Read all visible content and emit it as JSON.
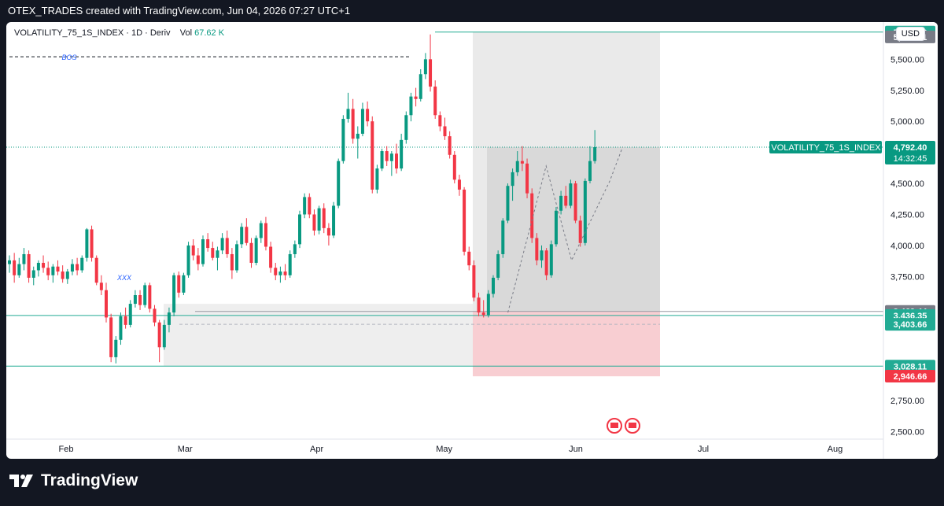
{
  "header": {
    "text": "OTEX_TRADES created with TradingView.com, Jun 04, 2026 07:27 UTC+1"
  },
  "chart_header": {
    "symbol": "VOLATILITY_75_1S_INDEX",
    "interval": "1D",
    "broker": "Deriv",
    "vol_label": "Vol",
    "vol_value": "67.62 K"
  },
  "currency": "USD",
  "branding": {
    "name": "TradingView"
  },
  "colors": {
    "up": "#089981",
    "down": "#f23645",
    "level": "#22ab94",
    "grey_box": "#787b86",
    "stop_box": "#f7525f",
    "bos": "#2962ff"
  },
  "chart_data": {
    "type": "candlestick",
    "ylim": [
      2440,
      5800
    ],
    "y_ticks": [
      2500,
      2750,
      3000,
      3250,
      3500,
      3750,
      4000,
      4250,
      4500,
      4750,
      5000,
      5250,
      5500
    ],
    "y_tick_labels": [
      "2,500.00",
      "2,750.00",
      "",
      "",
      "",
      "3,750.00",
      "4,000.00",
      "4,250.00",
      "4,500.00",
      "",
      "5,000.00",
      "5,250.00",
      "5,500.00"
    ],
    "x_labels": [
      {
        "label": "Feb",
        "day": 0
      },
      {
        "label": "Mar",
        "day": 28
      },
      {
        "label": "Apr",
        "day": 59
      },
      {
        "label": "May",
        "day": 89
      },
      {
        "label": "Jun",
        "day": 120
      },
      {
        "label": "Jul",
        "day": 150
      },
      {
        "label": "Aug",
        "day": 181
      }
    ],
    "price_labels": [
      {
        "value": "5,719.06",
        "price": 5719,
        "color": "#22ab94"
      },
      {
        "value": "5,714.01",
        "price": 5680,
        "color": "#787b86"
      },
      {
        "value": "3,469.44",
        "price": 3469,
        "color": "#787b86"
      },
      {
        "value": "3,436.35",
        "price": 3436,
        "color": "#22ab94"
      },
      {
        "value": "3,403.66",
        "price": 3365,
        "color": "#22ab94"
      },
      {
        "value": "3,028.11",
        "price": 3028,
        "color": "#22ab94"
      },
      {
        "value": "2,946.66",
        "price": 2947,
        "color": "#f23645"
      }
    ],
    "last_price": {
      "name": "VOLATILITY_75_1S_INDEX",
      "value": "4,792.40",
      "price": 4792,
      "countdown": "14:32:45"
    },
    "annotations": {
      "bos": "BOS",
      "xxx": "XXX"
    },
    "candles": [
      {
        "o": 3850,
        "h": 3920,
        "l": 3780,
        "c": 3880
      },
      {
        "o": 3880,
        "h": 3940,
        "l": 3700,
        "c": 3760
      },
      {
        "o": 3760,
        "h": 3900,
        "l": 3740,
        "c": 3850
      },
      {
        "o": 3850,
        "h": 3980,
        "l": 3800,
        "c": 3930
      },
      {
        "o": 3930,
        "h": 3960,
        "l": 3700,
        "c": 3740
      },
      {
        "o": 3740,
        "h": 3830,
        "l": 3680,
        "c": 3800
      },
      {
        "o": 3800,
        "h": 3880,
        "l": 3750,
        "c": 3860
      },
      {
        "o": 3860,
        "h": 3920,
        "l": 3780,
        "c": 3820
      },
      {
        "o": 3820,
        "h": 3870,
        "l": 3720,
        "c": 3760
      },
      {
        "o": 3760,
        "h": 3850,
        "l": 3700,
        "c": 3830
      },
      {
        "o": 3830,
        "h": 3880,
        "l": 3760,
        "c": 3790
      },
      {
        "o": 3790,
        "h": 3840,
        "l": 3700,
        "c": 3730
      },
      {
        "o": 3730,
        "h": 3810,
        "l": 3690,
        "c": 3790
      },
      {
        "o": 3790,
        "h": 3890,
        "l": 3760,
        "c": 3850
      },
      {
        "o": 3850,
        "h": 3900,
        "l": 3760,
        "c": 3800
      },
      {
        "o": 3800,
        "h": 3920,
        "l": 3780,
        "c": 3900
      },
      {
        "o": 3900,
        "h": 4140,
        "l": 3870,
        "c": 4130
      },
      {
        "o": 4130,
        "h": 4160,
        "l": 3870,
        "c": 3900
      },
      {
        "o": 3900,
        "h": 3920,
        "l": 3680,
        "c": 3700
      },
      {
        "o": 3700,
        "h": 3760,
        "l": 3600,
        "c": 3640
      },
      {
        "o": 3640,
        "h": 3700,
        "l": 3380,
        "c": 3420
      },
      {
        "o": 3420,
        "h": 3450,
        "l": 3060,
        "c": 3100
      },
      {
        "o": 3100,
        "h": 3270,
        "l": 3050,
        "c": 3240
      },
      {
        "o": 3240,
        "h": 3460,
        "l": 3200,
        "c": 3430
      },
      {
        "o": 3430,
        "h": 3500,
        "l": 3330,
        "c": 3360
      },
      {
        "o": 3360,
        "h": 3560,
        "l": 3340,
        "c": 3530
      },
      {
        "o": 3530,
        "h": 3640,
        "l": 3500,
        "c": 3600
      },
      {
        "o": 3600,
        "h": 3640,
        "l": 3480,
        "c": 3520
      },
      {
        "o": 3520,
        "h": 3700,
        "l": 3500,
        "c": 3680
      },
      {
        "o": 3680,
        "h": 3700,
        "l": 3460,
        "c": 3490
      },
      {
        "o": 3490,
        "h": 3520,
        "l": 3350,
        "c": 3380
      },
      {
        "o": 3380,
        "h": 3400,
        "l": 3060,
        "c": 3180
      },
      {
        "o": 3180,
        "h": 3400,
        "l": 3160,
        "c": 3360
      },
      {
        "o": 3360,
        "h": 3500,
        "l": 3300,
        "c": 3460
      },
      {
        "o": 3460,
        "h": 3780,
        "l": 3430,
        "c": 3760
      },
      {
        "o": 3760,
        "h": 3790,
        "l": 3580,
        "c": 3620
      },
      {
        "o": 3620,
        "h": 3780,
        "l": 3600,
        "c": 3760
      },
      {
        "o": 3760,
        "h": 4030,
        "l": 3740,
        "c": 4000
      },
      {
        "o": 4000,
        "h": 4050,
        "l": 3880,
        "c": 3920
      },
      {
        "o": 3920,
        "h": 3980,
        "l": 3800,
        "c": 3850
      },
      {
        "o": 3850,
        "h": 4080,
        "l": 3830,
        "c": 4050
      },
      {
        "o": 4050,
        "h": 4100,
        "l": 3950,
        "c": 3980
      },
      {
        "o": 3980,
        "h": 4030,
        "l": 3880,
        "c": 3900
      },
      {
        "o": 3900,
        "h": 3990,
        "l": 3800,
        "c": 3960
      },
      {
        "o": 3960,
        "h": 4100,
        "l": 3930,
        "c": 4060
      },
      {
        "o": 4060,
        "h": 4120,
        "l": 3900,
        "c": 3930
      },
      {
        "o": 3930,
        "h": 3980,
        "l": 3730,
        "c": 3800
      },
      {
        "o": 3800,
        "h": 4040,
        "l": 3780,
        "c": 4010
      },
      {
        "o": 4010,
        "h": 4180,
        "l": 3980,
        "c": 4150
      },
      {
        "o": 4150,
        "h": 4220,
        "l": 4000,
        "c": 4020
      },
      {
        "o": 4020,
        "h": 4060,
        "l": 3820,
        "c": 3860
      },
      {
        "o": 3860,
        "h": 4080,
        "l": 3840,
        "c": 4060
      },
      {
        "o": 4060,
        "h": 4200,
        "l": 4020,
        "c": 4180
      },
      {
        "o": 4180,
        "h": 4230,
        "l": 3960,
        "c": 3990
      },
      {
        "o": 3990,
        "h": 4030,
        "l": 3780,
        "c": 3820
      },
      {
        "o": 3820,
        "h": 3860,
        "l": 3720,
        "c": 3760
      },
      {
        "o": 3760,
        "h": 3830,
        "l": 3700,
        "c": 3790
      },
      {
        "o": 3790,
        "h": 3850,
        "l": 3720,
        "c": 3760
      },
      {
        "o": 3760,
        "h": 3960,
        "l": 3740,
        "c": 3930
      },
      {
        "o": 3930,
        "h": 4040,
        "l": 3900,
        "c": 4010
      },
      {
        "o": 4010,
        "h": 4280,
        "l": 3980,
        "c": 4250
      },
      {
        "o": 4250,
        "h": 4420,
        "l": 4220,
        "c": 4390
      },
      {
        "o": 4390,
        "h": 4420,
        "l": 4220,
        "c": 4250
      },
      {
        "o": 4250,
        "h": 4290,
        "l": 4080,
        "c": 4120
      },
      {
        "o": 4120,
        "h": 4320,
        "l": 4090,
        "c": 4300
      },
      {
        "o": 4300,
        "h": 4340,
        "l": 4100,
        "c": 4140
      },
      {
        "o": 4140,
        "h": 4180,
        "l": 4000,
        "c": 4080
      },
      {
        "o": 4080,
        "h": 4350,
        "l": 4060,
        "c": 4320
      },
      {
        "o": 4320,
        "h": 4700,
        "l": 4300,
        "c": 4680
      },
      {
        "o": 4680,
        "h": 5050,
        "l": 4660,
        "c": 5020
      },
      {
        "o": 5020,
        "h": 5230,
        "l": 4990,
        "c": 5100
      },
      {
        "o": 5100,
        "h": 5180,
        "l": 4820,
        "c": 4860
      },
      {
        "o": 4860,
        "h": 4960,
        "l": 4700,
        "c": 4900
      },
      {
        "o": 4900,
        "h": 5150,
        "l": 4880,
        "c": 5100
      },
      {
        "o": 5100,
        "h": 5160,
        "l": 4960,
        "c": 5000
      },
      {
        "o": 5000,
        "h": 5040,
        "l": 4420,
        "c": 4450
      },
      {
        "o": 4450,
        "h": 4650,
        "l": 4420,
        "c": 4620
      },
      {
        "o": 4620,
        "h": 4780,
        "l": 4600,
        "c": 4760
      },
      {
        "o": 4760,
        "h": 4800,
        "l": 4640,
        "c": 4680
      },
      {
        "o": 4680,
        "h": 4760,
        "l": 4560,
        "c": 4740
      },
      {
        "o": 4740,
        "h": 4820,
        "l": 4580,
        "c": 4620
      },
      {
        "o": 4620,
        "h": 4900,
        "l": 4600,
        "c": 4850
      },
      {
        "o": 4850,
        "h": 5080,
        "l": 4820,
        "c": 5050
      },
      {
        "o": 5050,
        "h": 5230,
        "l": 5000,
        "c": 5200
      },
      {
        "o": 5200,
        "h": 5270,
        "l": 5120,
        "c": 5180
      },
      {
        "o": 5180,
        "h": 5420,
        "l": 5160,
        "c": 5380
      },
      {
        "o": 5380,
        "h": 5550,
        "l": 5340,
        "c": 5500
      },
      {
        "o": 5500,
        "h": 5700,
        "l": 5240,
        "c": 5280
      },
      {
        "o": 5280,
        "h": 5330,
        "l": 5020,
        "c": 5050
      },
      {
        "o": 5050,
        "h": 5080,
        "l": 4920,
        "c": 4960
      },
      {
        "o": 4960,
        "h": 5030,
        "l": 4850,
        "c": 4880
      },
      {
        "o": 4880,
        "h": 4920,
        "l": 4700,
        "c": 4730
      },
      {
        "o": 4730,
        "h": 4760,
        "l": 4500,
        "c": 4530
      },
      {
        "o": 4530,
        "h": 4570,
        "l": 4400,
        "c": 4450
      },
      {
        "o": 4450,
        "h": 4470,
        "l": 3920,
        "c": 3950
      },
      {
        "o": 3950,
        "h": 3990,
        "l": 3800,
        "c": 3840
      },
      {
        "o": 3840,
        "h": 3880,
        "l": 3550,
        "c": 3580
      },
      {
        "o": 3580,
        "h": 3620,
        "l": 3430,
        "c": 3460
      },
      {
        "o": 3460,
        "h": 3560,
        "l": 3420,
        "c": 3440
      },
      {
        "o": 3440,
        "h": 3640,
        "l": 3420,
        "c": 3610
      },
      {
        "o": 3610,
        "h": 3760,
        "l": 3580,
        "c": 3740
      },
      {
        "o": 3740,
        "h": 3960,
        "l": 3720,
        "c": 3930
      },
      {
        "o": 3930,
        "h": 4220,
        "l": 3900,
        "c": 4200
      },
      {
        "o": 4200,
        "h": 4500,
        "l": 4180,
        "c": 4480
      },
      {
        "o": 4480,
        "h": 4620,
        "l": 4360,
        "c": 4590
      },
      {
        "o": 4590,
        "h": 4760,
        "l": 4560,
        "c": 4680
      },
      {
        "o": 4680,
        "h": 4800,
        "l": 4600,
        "c": 4660
      },
      {
        "o": 4660,
        "h": 4700,
        "l": 4380,
        "c": 4420
      },
      {
        "o": 4420,
        "h": 4460,
        "l": 4020,
        "c": 4060
      },
      {
        "o": 4060,
        "h": 4100,
        "l": 3840,
        "c": 3880
      },
      {
        "o": 3880,
        "h": 4000,
        "l": 3820,
        "c": 3960
      },
      {
        "o": 3960,
        "h": 3980,
        "l": 3720,
        "c": 3760
      },
      {
        "o": 3760,
        "h": 4040,
        "l": 3740,
        "c": 4010
      },
      {
        "o": 4010,
        "h": 4310,
        "l": 3990,
        "c": 4280
      },
      {
        "o": 4280,
        "h": 4440,
        "l": 4250,
        "c": 4400
      },
      {
        "o": 4400,
        "h": 4480,
        "l": 4300,
        "c": 4320
      },
      {
        "o": 4320,
        "h": 4530,
        "l": 4300,
        "c": 4500
      },
      {
        "o": 4500,
        "h": 4520,
        "l": 4180,
        "c": 4200
      },
      {
        "o": 4200,
        "h": 4240,
        "l": 3990,
        "c": 4020
      },
      {
        "o": 4020,
        "h": 4540,
        "l": 4000,
        "c": 4520
      },
      {
        "o": 4520,
        "h": 4800,
        "l": 4500,
        "c": 4680
      },
      {
        "o": 4680,
        "h": 4930,
        "l": 4660,
        "c": 4792
      }
    ]
  }
}
